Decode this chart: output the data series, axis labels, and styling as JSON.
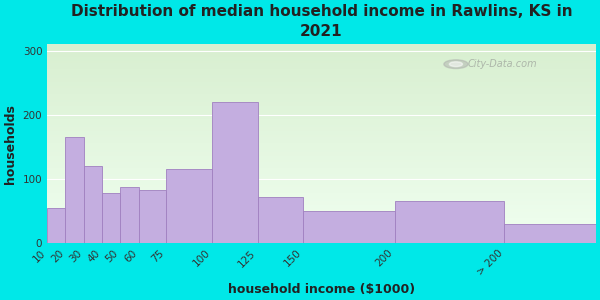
{
  "title": "Distribution of median household income in Rawlins, KS in\n2021",
  "xlabel": "household income ($1000)",
  "ylabel": "households",
  "bar_labels": [
    "10",
    "20",
    "30",
    "40",
    "50",
    "60",
    "75",
    "100",
    "125",
    "150",
    "200",
    "> 200"
  ],
  "bar_values": [
    55,
    165,
    120,
    78,
    88,
    82,
    115,
    220,
    72,
    50,
    65,
    30
  ],
  "bar_color": "#c4aee0",
  "bar_edge_color": "#a080c0",
  "ylim": [
    0,
    310
  ],
  "yticks": [
    0,
    100,
    200,
    300
  ],
  "background_outer": "#00e8e8",
  "background_inner_top": "#d8efd0",
  "background_inner_bottom": "#f0fff0",
  "title_fontsize": 11,
  "title_color": "#222222",
  "axis_label_fontsize": 9,
  "tick_fontsize": 7.5,
  "watermark": "City-Data.com",
  "bin_edges": [
    10,
    20,
    30,
    40,
    50,
    60,
    75,
    100,
    125,
    150,
    200,
    260,
    310
  ],
  "xlim_min": 10,
  "xlim_max": 310
}
